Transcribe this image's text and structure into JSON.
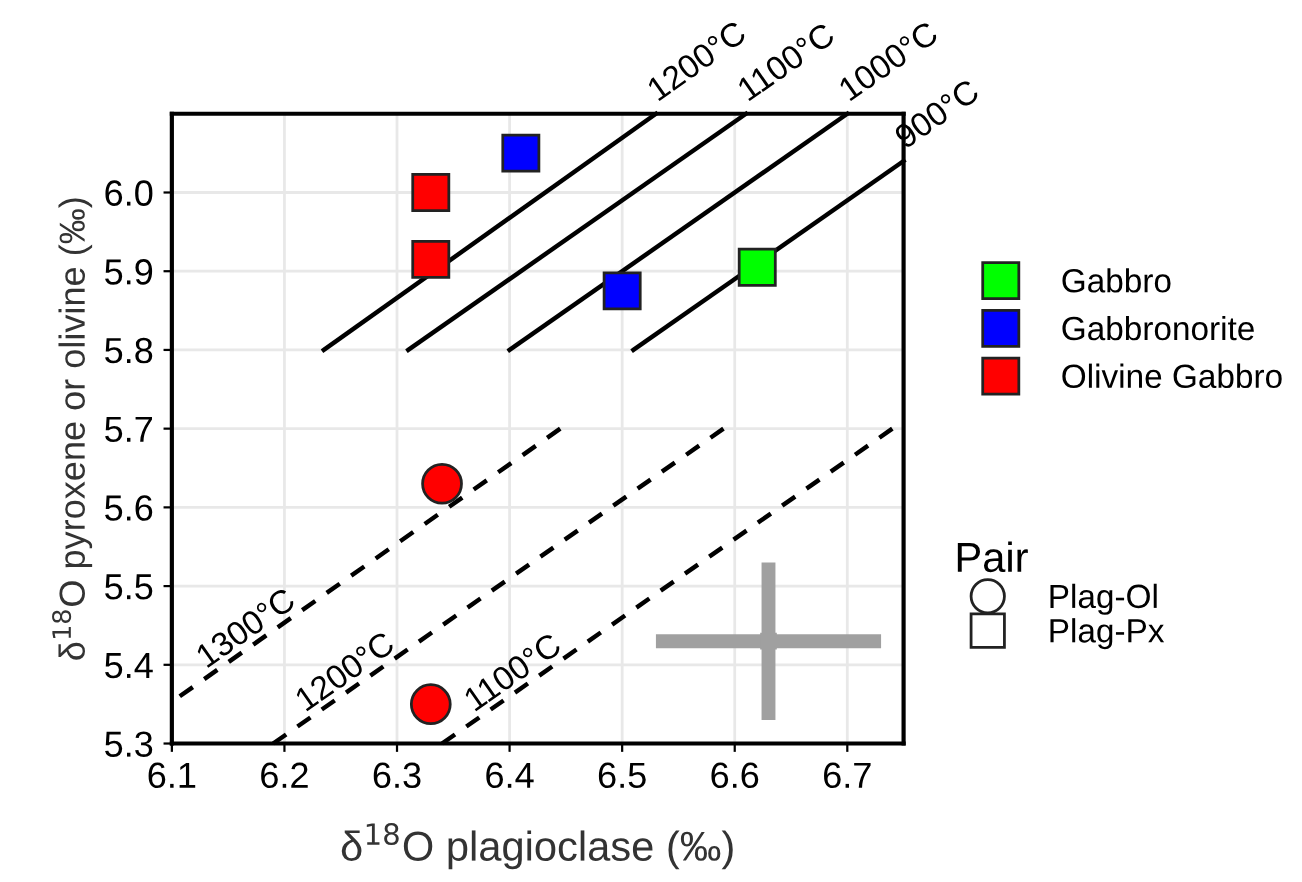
{
  "chart_data": {
    "type": "scatter",
    "xlabel": "δ$^{18}$O plagioclase (‰)",
    "ylabel": "δ$^{18}$O pyroxene or olivine (‰)",
    "xlim": [
      6.1,
      6.75
    ],
    "ylim": [
      5.3,
      6.1
    ],
    "xticks": [
      6.1,
      6.2,
      6.3,
      6.4,
      6.5,
      6.6,
      6.7
    ],
    "yticks": [
      5.3,
      5.4,
      5.5,
      5.6,
      5.7,
      5.8,
      5.9,
      {
        "value": 6.0,
        "label": "6.0"
      }
    ],
    "grid": true,
    "legend": "right",
    "legend_title": "Pair",
    "annotations": [
      "Plag-Ol",
      "Plag-Px"
    ],
    "series": [
      {
        "type": "line",
        "name": "1200°C",
        "color": "#000000",
        "line_style": "solid",
        "marker": "none",
        "x": [
          6.235,
          6.53
        ],
        "values": [
          5.8,
          6.1
        ]
      },
      {
        "type": "line",
        "name": "1100°C",
        "color": "#000000",
        "line_style": "solid",
        "marker": "none",
        "x": [
          6.31,
          6.61
        ],
        "values": [
          5.8,
          6.1
        ]
      },
      {
        "type": "line",
        "name": "1000°C",
        "color": "#000000",
        "line_style": "solid",
        "marker": "none",
        "x": [
          6.4,
          6.7
        ],
        "values": [
          5.8,
          6.1
        ]
      },
      {
        "type": "line",
        "name": "900°C",
        "color": "#000000",
        "line_style": "solid",
        "marker": "none",
        "x": [
          6.51,
          6.75
        ],
        "values": [
          5.8,
          6.04
        ]
      },
      {
        "type": "line",
        "name": "1300°C",
        "color": "#000000",
        "line_style": "dashed",
        "marker": "none",
        "x": [
          6.107,
          6.445
        ],
        "values": [
          5.36,
          5.7
        ]
      },
      {
        "type": "line",
        "name": "1200°C",
        "color": "#000000",
        "line_style": "dashed",
        "marker": "none",
        "x": [
          6.19,
          6.59
        ],
        "values": [
          5.3,
          5.7
        ]
      },
      {
        "type": "line",
        "name": "1100°C",
        "color": "#000000",
        "line_style": "dashed",
        "marker": "none",
        "x": [
          6.34,
          6.74
        ],
        "values": [
          5.3,
          5.7
        ]
      },
      {
        "name": "Gabbro",
        "color": "#00ff00",
        "marker": "square",
        "x": [
          6.62
        ],
        "values": [
          5.905
        ]
      },
      {
        "name": "Gabbronorite",
        "color": "#0000ff",
        "marker": "square",
        "x": [
          6.41,
          6.5
        ],
        "values": [
          6.05,
          5.875
        ]
      },
      {
        "name": "Olivine Gabbro",
        "color": "#ff0000",
        "marker": "square",
        "x": [
          6.33,
          6.33
        ],
        "values": [
          6.0,
          5.915
        ]
      },
      {
        "color": "#ff0000",
        "marker": "circle",
        "x": [
          6.34,
          6.33
        ],
        "values": [
          5.63,
          5.35
        ]
      },
      {
        "color": "#a0a0a0",
        "marker": "square",
        "x": [
          6.63
        ],
        "values": [
          5.43
        ],
        "errors": [
          0.1
        ],
        "xerrors": [
          0.1
        ]
      }
    ]
  }
}
